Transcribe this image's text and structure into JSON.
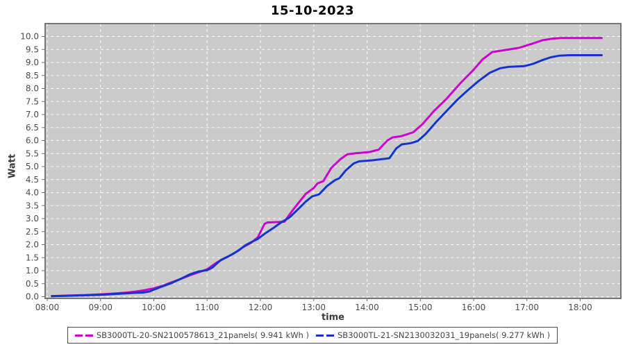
{
  "title": "15-10-2023",
  "colors": {
    "series1": "#cc00cc",
    "series2": "#1236cc",
    "plot_bg": "#cbcbcb",
    "plot_border": "#777777",
    "grid": "#ffffff",
    "tick_text": "#4d4d4d",
    "axis_text": "#3c3c3c",
    "legend_border": "#4a4a4a"
  },
  "chart_data": {
    "type": "line",
    "title": "15-10-2023",
    "xlabel": "time",
    "ylabel": "Watt",
    "grid": true,
    "legend_position": "bottom",
    "x_ticks": [
      "08:00",
      "09:00",
      "10:00",
      "11:00",
      "12:00",
      "13:00",
      "14:00",
      "15:00",
      "16:00",
      "17:00",
      "18:00"
    ],
    "x_tick_hours": [
      8,
      9,
      10,
      11,
      12,
      13,
      14,
      15,
      16,
      17,
      18
    ],
    "y_ticks": [
      "0.0",
      "0.5",
      "1.0",
      "1.5",
      "2.0",
      "2.5",
      "3.0",
      "3.5",
      "4.0",
      "4.5",
      "5.0",
      "5.5",
      "6.0",
      "6.5",
      "7.0",
      "7.5",
      "8.0",
      "8.5",
      "9.0",
      "9.5",
      "10.0"
    ],
    "y_tick_values": [
      0,
      0.5,
      1,
      1.5,
      2,
      2.5,
      3,
      3.5,
      4,
      4.5,
      5,
      5.5,
      6,
      6.5,
      7,
      7.5,
      8,
      8.5,
      9,
      9.5,
      10
    ],
    "xlim_hours": [
      7.96,
      18.77
    ],
    "ylim": [
      -0.07,
      10.49
    ],
    "series": [
      {
        "name": "SB3000TL-20-SN2100578613_21panels( 9.941 kWh )",
        "color": "#cc00cc",
        "total_kwh": 9.941,
        "points": [
          [
            8.07,
            0.02
          ],
          [
            8.33,
            0.04
          ],
          [
            8.67,
            0.06
          ],
          [
            9.0,
            0.09
          ],
          [
            9.25,
            0.12
          ],
          [
            9.5,
            0.16
          ],
          [
            9.67,
            0.2
          ],
          [
            9.83,
            0.25
          ],
          [
            10.0,
            0.32
          ],
          [
            10.17,
            0.42
          ],
          [
            10.33,
            0.55
          ],
          [
            10.5,
            0.68
          ],
          [
            10.67,
            0.82
          ],
          [
            10.83,
            0.93
          ],
          [
            11.0,
            1.05
          ],
          [
            11.17,
            1.3
          ],
          [
            11.33,
            1.48
          ],
          [
            11.5,
            1.66
          ],
          [
            11.67,
            1.9
          ],
          [
            11.83,
            2.08
          ],
          [
            11.95,
            2.28
          ],
          [
            12.08,
            2.8
          ],
          [
            12.13,
            2.85
          ],
          [
            12.45,
            2.88
          ],
          [
            12.58,
            3.25
          ],
          [
            12.72,
            3.62
          ],
          [
            12.85,
            3.95
          ],
          [
            13.0,
            4.18
          ],
          [
            13.07,
            4.35
          ],
          [
            13.18,
            4.44
          ],
          [
            13.33,
            4.95
          ],
          [
            13.5,
            5.28
          ],
          [
            13.63,
            5.47
          ],
          [
            13.78,
            5.51
          ],
          [
            14.05,
            5.56
          ],
          [
            14.22,
            5.65
          ],
          [
            14.38,
            6.0
          ],
          [
            14.48,
            6.12
          ],
          [
            14.65,
            6.17
          ],
          [
            14.87,
            6.32
          ],
          [
            15.05,
            6.65
          ],
          [
            15.25,
            7.12
          ],
          [
            15.5,
            7.62
          ],
          [
            15.75,
            8.2
          ],
          [
            16.0,
            8.72
          ],
          [
            16.17,
            9.12
          ],
          [
            16.35,
            9.4
          ],
          [
            16.6,
            9.48
          ],
          [
            16.85,
            9.56
          ],
          [
            17.1,
            9.72
          ],
          [
            17.3,
            9.86
          ],
          [
            17.5,
            9.92
          ],
          [
            17.65,
            9.94
          ],
          [
            18.0,
            9.94
          ],
          [
            18.42,
            9.94
          ]
        ]
      },
      {
        "name": "SB3000TL-21-SN2130032031_19panels( 9.277 kWh )",
        "color": "#1236cc",
        "total_kwh": 9.277,
        "points": [
          [
            8.07,
            0.02
          ],
          [
            8.33,
            0.03
          ],
          [
            8.67,
            0.05
          ],
          [
            9.0,
            0.07
          ],
          [
            9.25,
            0.1
          ],
          [
            9.5,
            0.13
          ],
          [
            9.67,
            0.15
          ],
          [
            9.8,
            0.16
          ],
          [
            9.92,
            0.2
          ],
          [
            10.0,
            0.27
          ],
          [
            10.17,
            0.4
          ],
          [
            10.33,
            0.52
          ],
          [
            10.5,
            0.68
          ],
          [
            10.67,
            0.85
          ],
          [
            10.82,
            0.96
          ],
          [
            11.0,
            1.02
          ],
          [
            11.1,
            1.12
          ],
          [
            11.25,
            1.4
          ],
          [
            11.42,
            1.57
          ],
          [
            11.58,
            1.76
          ],
          [
            11.72,
            1.98
          ],
          [
            11.83,
            2.1
          ],
          [
            11.95,
            2.22
          ],
          [
            12.08,
            2.42
          ],
          [
            12.25,
            2.65
          ],
          [
            12.4,
            2.87
          ],
          [
            12.55,
            3.05
          ],
          [
            12.7,
            3.35
          ],
          [
            12.85,
            3.65
          ],
          [
            12.97,
            3.85
          ],
          [
            13.1,
            3.93
          ],
          [
            13.25,
            4.25
          ],
          [
            13.4,
            4.48
          ],
          [
            13.48,
            4.55
          ],
          [
            13.6,
            4.85
          ],
          [
            13.75,
            5.12
          ],
          [
            13.85,
            5.2
          ],
          [
            14.1,
            5.24
          ],
          [
            14.42,
            5.32
          ],
          [
            14.55,
            5.7
          ],
          [
            14.65,
            5.85
          ],
          [
            14.82,
            5.9
          ],
          [
            14.95,
            5.98
          ],
          [
            15.1,
            6.25
          ],
          [
            15.3,
            6.72
          ],
          [
            15.5,
            7.15
          ],
          [
            15.7,
            7.58
          ],
          [
            15.9,
            7.95
          ],
          [
            16.1,
            8.3
          ],
          [
            16.3,
            8.6
          ],
          [
            16.5,
            8.78
          ],
          [
            16.65,
            8.83
          ],
          [
            16.95,
            8.86
          ],
          [
            17.12,
            8.95
          ],
          [
            17.3,
            9.1
          ],
          [
            17.45,
            9.2
          ],
          [
            17.6,
            9.26
          ],
          [
            17.8,
            9.28
          ],
          [
            18.1,
            9.28
          ],
          [
            18.42,
            9.28
          ]
        ]
      }
    ]
  }
}
